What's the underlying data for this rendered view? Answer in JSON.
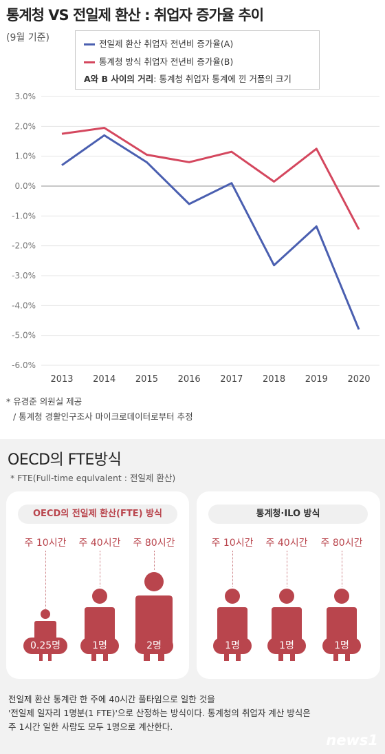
{
  "title": "통계청 VS 전일제 환산 : 취업자 증가율 추이",
  "subtitle": "(9월 기준)",
  "legend": {
    "a_label": "전일제 환산 취업자 전년비 증가율(A)",
    "b_label": "통계청 방식 취업자 전년비 증가율(B)",
    "note_bold": "A와 B 사이의 거리",
    "note_rest": ": 통계청 취업자 통계에 낀 거품의 크기",
    "a_color": "#4a5fb0",
    "b_color": "#d4475e"
  },
  "chart_data": {
    "type": "line",
    "x": [
      "2013",
      "2014",
      "2015",
      "2016",
      "2017",
      "2018",
      "2019",
      "2020"
    ],
    "series": [
      {
        "name": "전일제 환산 취업자 전년비 증가율(A)",
        "color": "#4a5fb0",
        "values": [
          0.7,
          1.7,
          0.8,
          -0.6,
          0.1,
          -2.65,
          -1.35,
          -4.8
        ]
      },
      {
        "name": "통계청 방식 취업자 전년비 증가율(B)",
        "color": "#d4475e",
        "values": [
          1.75,
          1.95,
          1.05,
          0.8,
          1.15,
          0.15,
          1.25,
          -1.45
        ]
      }
    ],
    "yticks": [
      3,
      2,
      1,
      0,
      -1,
      -2,
      -3,
      -4,
      -5,
      -6
    ],
    "ytick_labels": [
      "3.0%",
      "2.0%",
      "1.0%",
      "0.0%",
      "-1.0%",
      "-2.0%",
      "-3.0%",
      "-4.0%",
      "-5.0%",
      "-6.0%"
    ],
    "ylim": [
      -6,
      3
    ],
    "grid": true
  },
  "source": {
    "line1": "* 유경준 의원실 제공",
    "line2": "/ 통계청 경활인구조사 마이크로데이터로부터 추정"
  },
  "oecd": {
    "heading": "OECD의 FTE방식",
    "note": "* FTE(Full-time equlvalent : 전일제 환산)",
    "left_title": "OECD의 전일제 환산(FTE) 방식",
    "right_title": "통계청·ILO 방식",
    "hours": [
      "주 10시간",
      "주 40시간",
      "주 80시간"
    ],
    "left_counts": [
      "0.25명",
      "1명",
      "2명"
    ],
    "right_counts": [
      "1명",
      "1명",
      "1명"
    ],
    "accent": "#b9454d",
    "desc1": "전일제 환산 통계란 한 주에 40시간 풀타임으로 일한 것을",
    "desc2": "'전일제 일자리 1명분(1 FTE)'으로 산정하는 방식이다. 통계청의 취업자 계산 방식은",
    "desc3": "주 1시간 일한 사람도 모두 1명으로 계산한다."
  },
  "logo": "news1"
}
